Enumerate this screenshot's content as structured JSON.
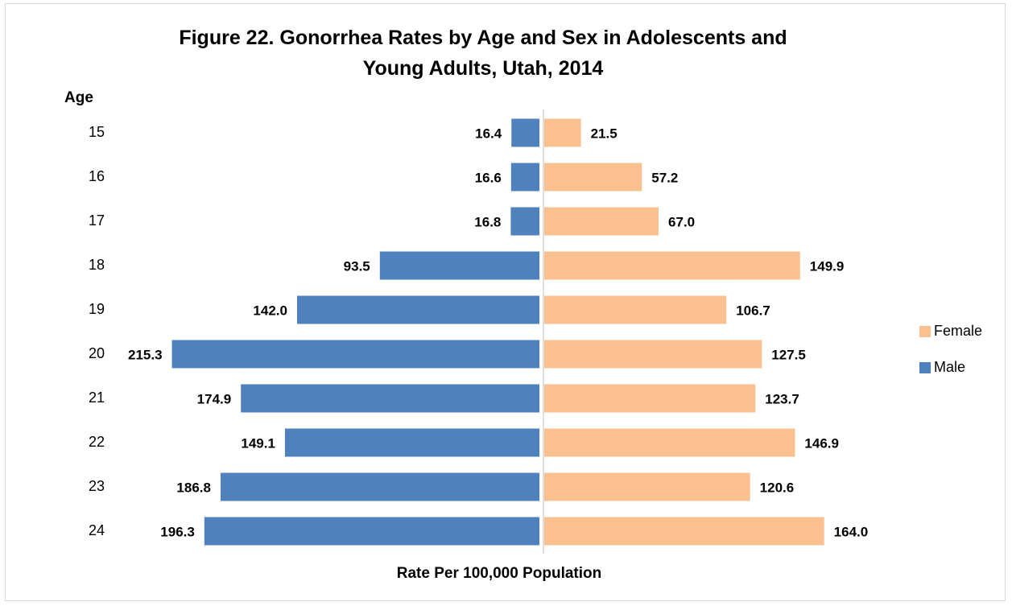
{
  "chart_data": {
    "type": "pyramid",
    "title": "Figure 22. Gonorrhea Rates by Age and Sex in Adolescents and Young Adults, Utah, 2014",
    "y_label": "Age",
    "x_label": "Rate Per 100,000 Population",
    "categories": [
      "15",
      "16",
      "17",
      "18",
      "19",
      "20",
      "21",
      "22",
      "23",
      "24"
    ],
    "legend": "right",
    "series": [
      {
        "name": "Female",
        "color": "#fac090",
        "side": "right",
        "values": [
          21.5,
          57.2,
          67.0,
          149.9,
          106.7,
          127.5,
          123.7,
          146.9,
          120.6,
          164.0
        ],
        "value_labels": [
          "21.5",
          "57.2",
          "67.0",
          "149.9",
          "106.7",
          "127.5",
          "123.7",
          "146.9",
          "120.6",
          "164.0"
        ]
      },
      {
        "name": "Male",
        "color": "#4f81bd",
        "side": "left",
        "values": [
          16.4,
          16.6,
          16.8,
          93.5,
          142.0,
          215.3,
          174.9,
          149.1,
          186.8,
          196.3
        ],
        "value_labels": [
          "16.4",
          "16.6",
          "16.8",
          "93.5",
          "142.0",
          "215.3",
          "174.9",
          "149.1",
          "186.8",
          "196.3"
        ]
      }
    ]
  }
}
